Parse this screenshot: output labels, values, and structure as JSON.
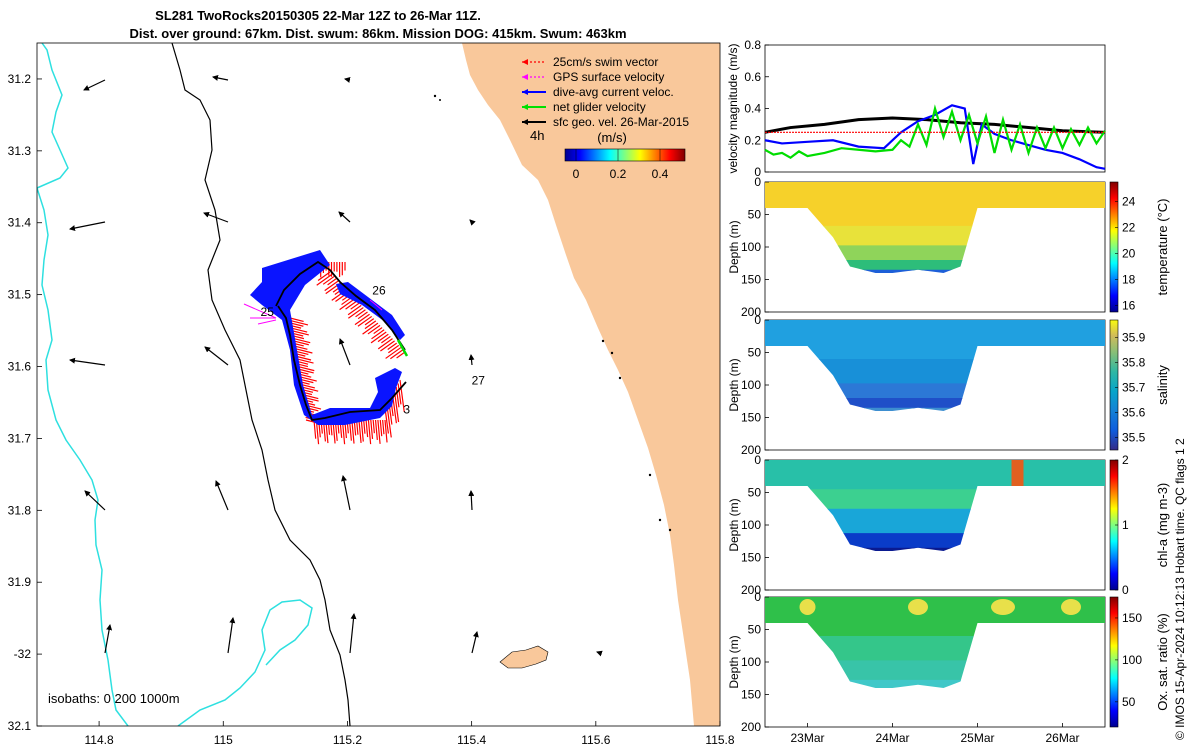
{
  "title": {
    "line1": "SL281 TwoRocks20150305 22-Mar 12Z to 26-Mar 11Z.",
    "line2": "Dist. over ground: 67km. Dist. swum: 86km. Mission DOG: 415km. Swum: 463km"
  },
  "legend": {
    "items": [
      {
        "label": "25cm/s swim vector",
        "color": "#ff0000",
        "dashed": true
      },
      {
        "label": "GPS surface velocity",
        "color": "#ff00ff",
        "dashed": true
      },
      {
        "label": "dive-avg current veloc.",
        "color": "#0000ff",
        "dashed": false
      },
      {
        "label": "net glider velocity",
        "color": "#00e000",
        "dashed": false
      },
      {
        "label": "sfc geo. vel. 26-Mar-2015",
        "color": "#000000",
        "dashed": false
      }
    ],
    "time_label": "4h",
    "colorbar_title": "(m/s)",
    "colorbar_ticks": [
      "0",
      "0.2",
      "0.4"
    ]
  },
  "map": {
    "lon_ticks": [
      "114.8",
      "115",
      "115.2",
      "115.4",
      "115.6",
      "115.8"
    ],
    "lat_ticks": [
      "31.2",
      "31.3",
      "31.4",
      "31.5",
      "31.6",
      "31.7",
      "31.8",
      "31.9",
      "-32",
      "32.1"
    ],
    "isobaths_label": "isobaths: 0   200  1000m",
    "day_labels": [
      {
        "text": "25",
        "lon": 115.06,
        "lat": 31.53
      },
      {
        "text": "26",
        "lon": 115.24,
        "lat": 31.5
      },
      {
        "text": "27",
        "lon": 115.4,
        "lat": 31.625
      },
      {
        "text": "3",
        "lon": 115.29,
        "lat": 31.665
      }
    ],
    "land_color": "#f9c89b",
    "isobath_200_color": "#000000",
    "isobath_1000_color": "#2ee0e0"
  },
  "timeline": {
    "xlim_days": [
      22.5,
      26.5
    ],
    "x_ticks": [
      "23Mar",
      "24Mar",
      "25Mar",
      "26Mar"
    ],
    "x_tick_values": [
      23,
      24,
      25,
      26
    ]
  },
  "chart_data": [
    {
      "type": "line",
      "title": "",
      "xlabel": "",
      "ylabel": "velocity magnitude (m/s)",
      "ylim": [
        0,
        0.8
      ],
      "y_ticks": [
        "0",
        "0.2",
        "0.4",
        "0.6",
        "0.8"
      ],
      "series": [
        {
          "name": "geostrophic",
          "color": "#000000",
          "x": [
            22.5,
            22.8,
            23.2,
            23.6,
            24.0,
            24.4,
            24.8,
            25.2,
            25.6,
            26.0,
            26.5
          ],
          "values": [
            0.25,
            0.28,
            0.3,
            0.33,
            0.34,
            0.33,
            0.31,
            0.3,
            0.28,
            0.26,
            0.25
          ]
        },
        {
          "name": "dive-avg current",
          "color": "#0000ff",
          "x": [
            22.5,
            22.7,
            23.0,
            23.3,
            23.6,
            23.9,
            24.1,
            24.3,
            24.5,
            24.7,
            24.85,
            24.95,
            25.05,
            25.2,
            25.4,
            25.6,
            25.8,
            26.0,
            26.2,
            26.4,
            26.5
          ],
          "values": [
            0.2,
            0.18,
            0.19,
            0.2,
            0.16,
            0.15,
            0.25,
            0.32,
            0.36,
            0.42,
            0.4,
            0.05,
            0.3,
            0.24,
            0.2,
            0.17,
            0.14,
            0.12,
            0.08,
            0.03,
            0.02
          ]
        },
        {
          "name": "net glider velocity",
          "color": "#00dd00",
          "x": [
            22.5,
            22.6,
            22.7,
            22.8,
            22.9,
            23.0,
            23.2,
            23.4,
            23.6,
            23.8,
            24.0,
            24.1,
            24.2,
            24.3,
            24.4,
            24.5,
            24.6,
            24.7,
            24.8,
            24.9,
            25.0,
            25.1,
            25.2,
            25.3,
            25.4,
            25.5,
            25.6,
            25.7,
            25.8,
            25.9,
            26.0,
            26.1,
            26.2,
            26.3,
            26.4,
            26.5
          ],
          "values": [
            0.14,
            0.11,
            0.12,
            0.09,
            0.13,
            0.1,
            0.12,
            0.15,
            0.14,
            0.13,
            0.14,
            0.2,
            0.16,
            0.3,
            0.17,
            0.4,
            0.22,
            0.38,
            0.2,
            0.36,
            0.18,
            0.35,
            0.12,
            0.33,
            0.14,
            0.3,
            0.12,
            0.28,
            0.15,
            0.28,
            0.15,
            0.27,
            0.17,
            0.28,
            0.18,
            0.26
          ]
        },
        {
          "name": "swim speed",
          "color": "#ff0000",
          "x": [
            22.5,
            23.0,
            23.5,
            24.0,
            24.5,
            25.0,
            25.5,
            26.0,
            26.5
          ],
          "values": [
            0.25,
            0.25,
            0.25,
            0.25,
            0.25,
            0.25,
            0.25,
            0.25,
            0.25
          ]
        }
      ]
    },
    {
      "type": "heatmap",
      "ylabel": "Depth (m)",
      "colorbar_label": "temperature (°C)",
      "ylim": [
        200,
        0
      ],
      "y_ticks": [
        "0",
        "50",
        "100",
        "150",
        "200"
      ],
      "clim": [
        15.5,
        25.5
      ],
      "cbar_ticks": [
        "16",
        "18",
        "20",
        "22",
        "24"
      ],
      "max_depth_profile": {
        "x": [
          22.5,
          23.0,
          23.3,
          23.5,
          23.8,
          24.0,
          24.3,
          24.6,
          24.8,
          25.0,
          25.2,
          26.5
        ],
        "values": [
          40,
          40,
          85,
          130,
          140,
          140,
          135,
          140,
          130,
          40,
          40,
          40
        ]
      }
    },
    {
      "type": "heatmap",
      "ylabel": "Depth (m)",
      "colorbar_label": "salinity",
      "ylim": [
        200,
        0
      ],
      "y_ticks": [
        "0",
        "50",
        "100",
        "150",
        "200"
      ],
      "clim": [
        35.45,
        35.97
      ],
      "cbar_ticks": [
        "35.5",
        "35.6",
        "35.7",
        "35.8",
        "35.9"
      ],
      "max_depth_profile": {
        "x": [
          22.5,
          23.0,
          23.3,
          23.5,
          23.8,
          24.0,
          24.3,
          24.6,
          24.8,
          25.0,
          25.2,
          26.5
        ],
        "values": [
          40,
          40,
          85,
          130,
          140,
          140,
          135,
          140,
          130,
          40,
          40,
          40
        ]
      }
    },
    {
      "type": "heatmap",
      "ylabel": "Depth (m)",
      "colorbar_label": "chl-a (mg m-3)",
      "ylim": [
        200,
        0
      ],
      "y_ticks": [
        "0",
        "50",
        "100",
        "150",
        "200"
      ],
      "clim": [
        0,
        2
      ],
      "cbar_ticks": [
        "0",
        "1",
        "2"
      ],
      "max_depth_profile": {
        "x": [
          22.5,
          23.0,
          23.3,
          23.5,
          23.8,
          24.0,
          24.3,
          24.6,
          24.8,
          25.0,
          25.2,
          26.5
        ],
        "values": [
          40,
          40,
          85,
          130,
          140,
          140,
          135,
          140,
          130,
          40,
          40,
          40
        ]
      }
    },
    {
      "type": "heatmap",
      "ylabel": "Depth (m)",
      "colorbar_label": "Ox. sat. ratio (%)",
      "ylim": [
        200,
        0
      ],
      "y_ticks": [
        "0",
        "50",
        "100",
        "150",
        "200"
      ],
      "clim": [
        20,
        175
      ],
      "cbar_ticks": [
        "50",
        "100",
        "150"
      ],
      "max_depth_profile": {
        "x": [
          22.5,
          23.0,
          23.3,
          23.5,
          23.8,
          24.0,
          24.3,
          24.6,
          24.8,
          25.0,
          25.2,
          26.5
        ],
        "values": [
          40,
          40,
          85,
          130,
          140,
          140,
          135,
          140,
          130,
          40,
          40,
          40
        ]
      }
    }
  ],
  "footer": {
    "credit": "© IMOS 15-Apr-2024 10:12:13 Hobart time. QC flags 1  2"
  }
}
